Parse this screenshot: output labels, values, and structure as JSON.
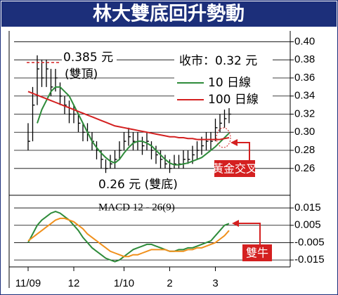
{
  "chart_data": {
    "type": "ohlc",
    "title": "林大雙底回升勢動",
    "categories": [
      "11/09",
      null,
      null,
      null,
      null,
      null,
      null,
      null,
      null,
      null,
      "12",
      null,
      null,
      null,
      null,
      null,
      null,
      null,
      null,
      null,
      null,
      "1/10",
      null,
      null,
      null,
      null,
      null,
      null,
      null,
      null,
      null,
      "2",
      null,
      null,
      null,
      null,
      null,
      null,
      null,
      null,
      null,
      "3",
      null,
      null,
      null
    ],
    "bars": {
      "color": "#000000",
      "high": [
        0.31,
        0.35,
        0.385,
        0.38,
        0.38,
        0.37,
        0.37,
        0.355,
        0.34,
        0.335,
        0.33,
        0.32,
        0.31,
        0.31,
        0.3,
        0.29,
        0.28,
        0.27,
        0.275,
        0.28,
        0.29,
        0.3,
        0.305,
        0.3,
        0.3,
        0.295,
        0.3,
        0.29,
        0.285,
        0.28,
        0.275,
        0.27,
        0.275,
        0.275,
        0.28,
        0.28,
        0.285,
        0.29,
        0.295,
        0.3,
        0.3,
        0.315,
        0.32,
        0.325,
        0.33
      ],
      "low": [
        0.28,
        0.29,
        0.33,
        0.35,
        0.35,
        0.34,
        0.345,
        0.33,
        0.32,
        0.31,
        0.31,
        0.3,
        0.29,
        0.29,
        0.28,
        0.27,
        0.26,
        0.255,
        0.26,
        0.26,
        0.27,
        0.28,
        0.285,
        0.28,
        0.28,
        0.275,
        0.28,
        0.27,
        0.265,
        0.26,
        0.26,
        0.255,
        0.26,
        0.26,
        0.26,
        0.265,
        0.265,
        0.27,
        0.275,
        0.28,
        0.28,
        0.29,
        0.3,
        0.305,
        0.31
      ],
      "close": [
        0.29,
        0.33,
        0.37,
        0.36,
        0.37,
        0.35,
        0.36,
        0.34,
        0.33,
        0.32,
        0.32,
        0.31,
        0.3,
        0.3,
        0.29,
        0.28,
        0.27,
        0.26,
        0.265,
        0.27,
        0.28,
        0.29,
        0.295,
        0.29,
        0.29,
        0.285,
        0.29,
        0.28,
        0.275,
        0.27,
        0.265,
        0.26,
        0.265,
        0.265,
        0.27,
        0.27,
        0.275,
        0.28,
        0.285,
        0.29,
        0.29,
        0.305,
        0.31,
        0.315,
        0.32
      ]
    },
    "series": [
      {
        "name": "10 日線",
        "color": "#2e8b3a",
        "values": [
          null,
          null,
          0.31,
          0.325,
          0.335,
          0.345,
          0.35,
          0.35,
          0.345,
          0.34,
          0.33,
          0.32,
          0.31,
          0.3,
          0.29,
          0.283,
          0.277,
          0.272,
          0.268,
          0.266,
          0.27,
          0.277,
          0.283,
          0.288,
          0.29,
          0.29,
          0.288,
          0.285,
          0.28,
          0.275,
          0.27,
          0.266,
          0.264,
          0.264,
          0.265,
          0.266,
          0.268,
          0.27,
          0.272,
          0.276,
          0.28,
          0.284,
          0.289,
          0.294,
          0.299
        ]
      },
      {
        "name": "100 日線",
        "color": "#d42020",
        "values": [
          0.345,
          0.343,
          0.341,
          0.339,
          0.337,
          0.335,
          0.333,
          0.331,
          0.329,
          0.327,
          0.325,
          0.323,
          0.321,
          0.319,
          0.317,
          0.315,
          0.313,
          0.311,
          0.309,
          0.307,
          0.306,
          0.305,
          0.304,
          0.303,
          0.302,
          0.301,
          0.3,
          0.299,
          0.298,
          0.297,
          0.296,
          0.295,
          0.295,
          0.294,
          0.294,
          0.293,
          0.293,
          0.292,
          0.292,
          0.292,
          0.292,
          0.292,
          0.292,
          0.293,
          0.294
        ]
      }
    ],
    "ylim": [
      0.235,
      0.405
    ],
    "yticks": [
      {
        "value": 0.4,
        "label": "0.40"
      },
      0.38,
      0.36,
      0.34,
      0.32,
      {
        "value": 0.3,
        "label": "0.30"
      },
      0.28,
      0.26
    ],
    "grid": true,
    "annotations": [
      "0.385 元",
      "(雙頂)",
      "0.26 元 (雙底)",
      "收市：0.32 元",
      "黃金交叉",
      "雙牛"
    ],
    "macd": {
      "label": "MACD 12 - 26(9)",
      "ylim": [
        -0.019,
        0.0207
      ],
      "yticks": [
        0.015,
        0.005,
        -0.005,
        -0.015
      ],
      "series": [
        {
          "color": "#2e8b3a",
          "values": [
            -0.005,
            0.0,
            0.005,
            0.008,
            0.01,
            0.012,
            0.013,
            0.012,
            0.01,
            0.008,
            0.005,
            0.002,
            -0.002,
            -0.005,
            -0.008,
            -0.01,
            -0.012,
            -0.014,
            -0.015,
            -0.016,
            -0.015,
            -0.013,
            -0.011,
            -0.009,
            -0.008,
            -0.007,
            -0.006,
            -0.006,
            -0.007,
            -0.008,
            -0.009,
            -0.01,
            -0.01,
            -0.009,
            -0.009,
            -0.008,
            -0.008,
            -0.007,
            -0.006,
            -0.005,
            -0.004,
            -0.001,
            0.002,
            0.005,
            0.006
          ]
        },
        {
          "color": "#f0901c",
          "values": [
            -0.004,
            -0.002,
            0.0,
            0.002,
            0.004,
            0.006,
            0.008,
            0.009,
            0.009,
            0.008,
            0.007,
            0.005,
            0.003,
            0.0,
            -0.002,
            -0.004,
            -0.006,
            -0.008,
            -0.01,
            -0.011,
            -0.012,
            -0.013,
            -0.013,
            -0.012,
            -0.012,
            -0.011,
            -0.01,
            -0.009,
            -0.009,
            -0.009,
            -0.009,
            -0.01,
            -0.01,
            -0.01,
            -0.01,
            -0.009,
            -0.009,
            -0.008,
            -0.008,
            -0.007,
            -0.006,
            -0.005,
            -0.003,
            -0.001,
            0.002
          ]
        }
      ]
    }
  }
}
